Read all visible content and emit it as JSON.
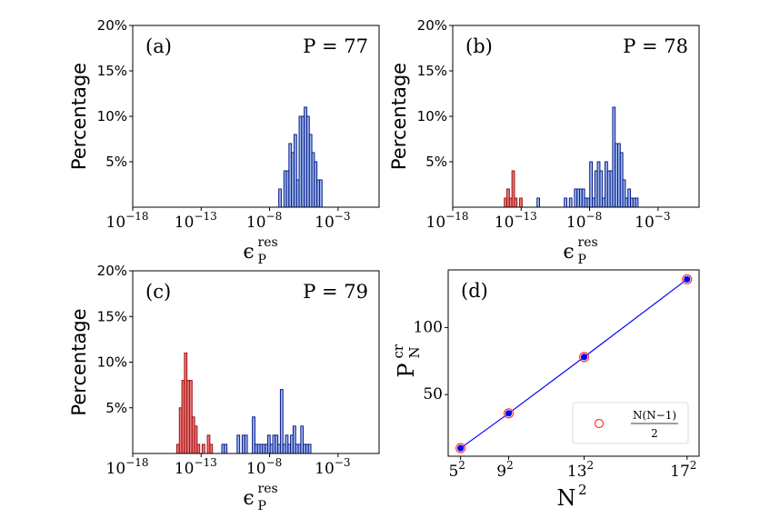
{
  "colors": {
    "blue_fill": "#9bb8e8",
    "blue_edge": "#0a1a8c",
    "red_fill": "#e77a7a",
    "red_edge": "#a01010",
    "line": "#0000ff",
    "marker_fill": "#0000ff",
    "marker_edge": "#ff3333"
  },
  "chart_data": [
    {
      "type": "bar",
      "panel_label": "(a)",
      "annotation": "P = 77",
      "ylabel": "Percentage",
      "xlabel": {
        "symbol": "ϵ",
        "sub": "P",
        "sup": "res"
      },
      "xscale": "log",
      "xlim": [
        -18,
        0
      ],
      "ylim": [
        0,
        20
      ],
      "xticks": [
        {
          "value": -18,
          "base": "10",
          "exp": "−18"
        },
        {
          "value": -13,
          "base": "10",
          "exp": "−13"
        },
        {
          "value": -8,
          "base": "10",
          "exp": "−8"
        },
        {
          "value": -3,
          "base": "10",
          "exp": "−3"
        }
      ],
      "yticks": [
        {
          "value": 5,
          "label": "5%"
        },
        {
          "value": 10,
          "label": "10%"
        },
        {
          "value": 15,
          "label": "15%"
        },
        {
          "value": 20,
          "label": "20%"
        }
      ],
      "bin_width_decades": 0.186,
      "series": [
        {
          "color": "blue",
          "log10_start": -7.33,
          "percent": [
            2,
            0,
            4,
            4,
            7,
            6,
            8,
            3,
            10,
            10,
            11,
            10,
            8,
            6,
            5,
            3,
            3
          ]
        }
      ]
    },
    {
      "type": "bar",
      "panel_label": "(b)",
      "annotation": "P = 78",
      "ylabel": "Percentage",
      "xlabel": {
        "symbol": "ϵ",
        "sub": "P",
        "sup": "res"
      },
      "xscale": "log",
      "xlim": [
        -18,
        0
      ],
      "ylim": [
        0,
        20
      ],
      "xticks": [
        {
          "value": -18,
          "base": "10",
          "exp": "−18"
        },
        {
          "value": -13,
          "base": "10",
          "exp": "−13"
        },
        {
          "value": -8,
          "base": "10",
          "exp": "−8"
        },
        {
          "value": -3,
          "base": "10",
          "exp": "−3"
        }
      ],
      "yticks": [
        {
          "value": 5,
          "label": "5%"
        },
        {
          "value": 10,
          "label": "10%"
        },
        {
          "value": 15,
          "label": "15%"
        },
        {
          "value": 20,
          "label": "20%"
        }
      ],
      "bin_width_decades": 0.186,
      "series": [
        {
          "color": "red",
          "log10_start": -14.23,
          "percent": [
            1,
            2,
            1,
            4,
            1,
            0,
            1
          ]
        },
        {
          "color": "blue",
          "log10_start": -11.84,
          "percent": [
            1
          ]
        },
        {
          "color": "blue",
          "log10_start": -9.85,
          "percent": [
            1,
            0,
            1,
            0,
            2,
            2,
            2,
            2,
            1,
            1,
            5,
            1,
            4,
            5,
            4,
            1,
            5,
            4,
            4,
            11,
            7,
            7,
            6,
            3,
            1,
            2,
            1,
            1,
            1
          ]
        }
      ]
    },
    {
      "type": "bar",
      "panel_label": "(c)",
      "annotation": "P = 79",
      "ylabel": "Percentage",
      "xlabel": {
        "symbol": "ϵ",
        "sub": "P",
        "sup": "res"
      },
      "xscale": "log",
      "xlim": [
        -18,
        0
      ],
      "ylim": [
        0,
        20
      ],
      "xticks": [
        {
          "value": -18,
          "base": "10",
          "exp": "−18"
        },
        {
          "value": -13,
          "base": "10",
          "exp": "−13"
        },
        {
          "value": -8,
          "base": "10",
          "exp": "−8"
        },
        {
          "value": -3,
          "base": "10",
          "exp": "−3"
        }
      ],
      "yticks": [
        {
          "value": 5,
          "label": "5%"
        },
        {
          "value": 10,
          "label": "10%"
        },
        {
          "value": 15,
          "label": "15%"
        },
        {
          "value": 20,
          "label": "20%"
        }
      ],
      "bin_width_decades": 0.186,
      "series": [
        {
          "color": "red",
          "log10_start": -14.78,
          "percent": [
            1,
            5,
            8,
            11,
            8,
            8,
            4,
            3,
            1,
            0,
            1,
            0,
            2,
            1
          ]
        },
        {
          "color": "blue",
          "log10_start": -11.49,
          "percent": [
            1,
            1,
            0,
            0,
            0,
            0,
            2,
            0,
            2,
            2,
            0,
            0,
            4,
            1,
            1,
            1,
            1,
            1,
            2,
            1,
            2,
            2,
            1,
            7,
            1,
            2,
            1,
            2,
            3,
            1,
            1,
            3,
            1,
            1,
            1
          ]
        }
      ]
    },
    {
      "type": "line",
      "panel_label": "(d)",
      "ylabel": {
        "symbol": "P",
        "sub": "N",
        "sup": "cr"
      },
      "xlabel": {
        "symbol": "N",
        "sup": "2"
      },
      "xlim": [
        10.5,
        303
      ],
      "ylim": [
        4,
        143
      ],
      "xticks": [
        {
          "value": 25,
          "base": "5",
          "exp": "2"
        },
        {
          "value": 81,
          "base": "9",
          "exp": "2"
        },
        {
          "value": 169,
          "base": "13",
          "exp": "2"
        },
        {
          "value": 289,
          "base": "17",
          "exp": "2"
        }
      ],
      "yticks": [
        {
          "value": 50,
          "label": "50"
        },
        {
          "value": 100,
          "label": "100"
        }
      ],
      "x": [
        25,
        81,
        169,
        289
      ],
      "y": [
        10,
        36,
        78,
        136
      ],
      "reference_y": [
        10,
        36,
        78,
        136
      ],
      "legend": {
        "numerator": "N(N−1)",
        "denominator": "2",
        "placement": "lower right"
      }
    }
  ]
}
